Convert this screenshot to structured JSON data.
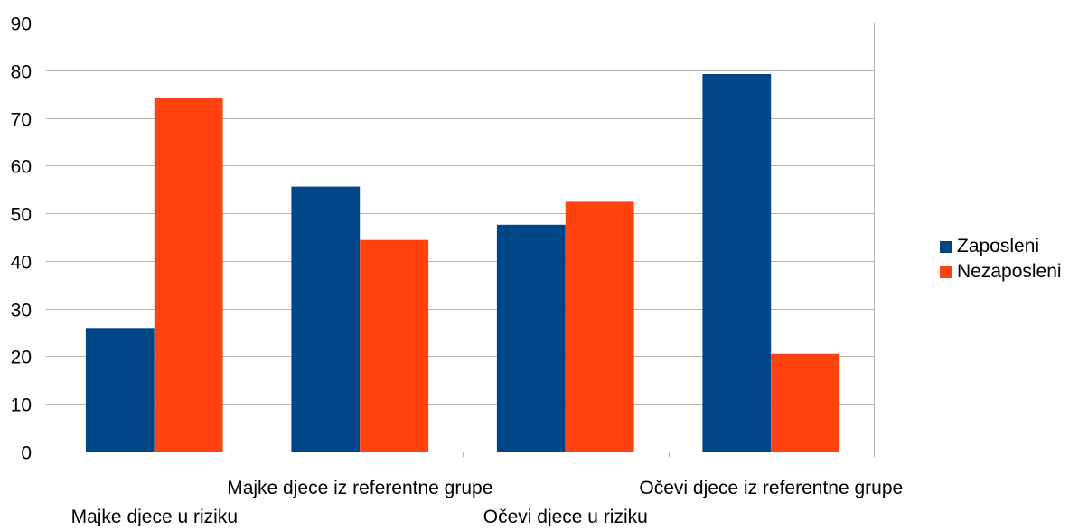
{
  "chart_data": {
    "type": "bar",
    "categories": [
      "Majke djece u riziku",
      "Majke djece iz referentne grupe",
      "Očevi djece u riziku",
      "Očevi djece iz referentne grupe"
    ],
    "series": [
      {
        "name": "Zaposleni",
        "values": [
          25.9,
          55.6,
          47.6,
          79.2
        ],
        "color": "#004586"
      },
      {
        "name": "Nezaposleni",
        "values": [
          74.1,
          44.4,
          52.4,
          20.5
        ],
        "color": "#ff420e"
      }
    ],
    "ylim": [
      0,
      90
    ],
    "yticks": [
      0,
      10,
      20,
      30,
      40,
      50,
      60,
      70,
      80,
      90
    ],
    "grid": true,
    "legend_position": "right",
    "title": "",
    "xlabel": "",
    "ylabel": ""
  }
}
